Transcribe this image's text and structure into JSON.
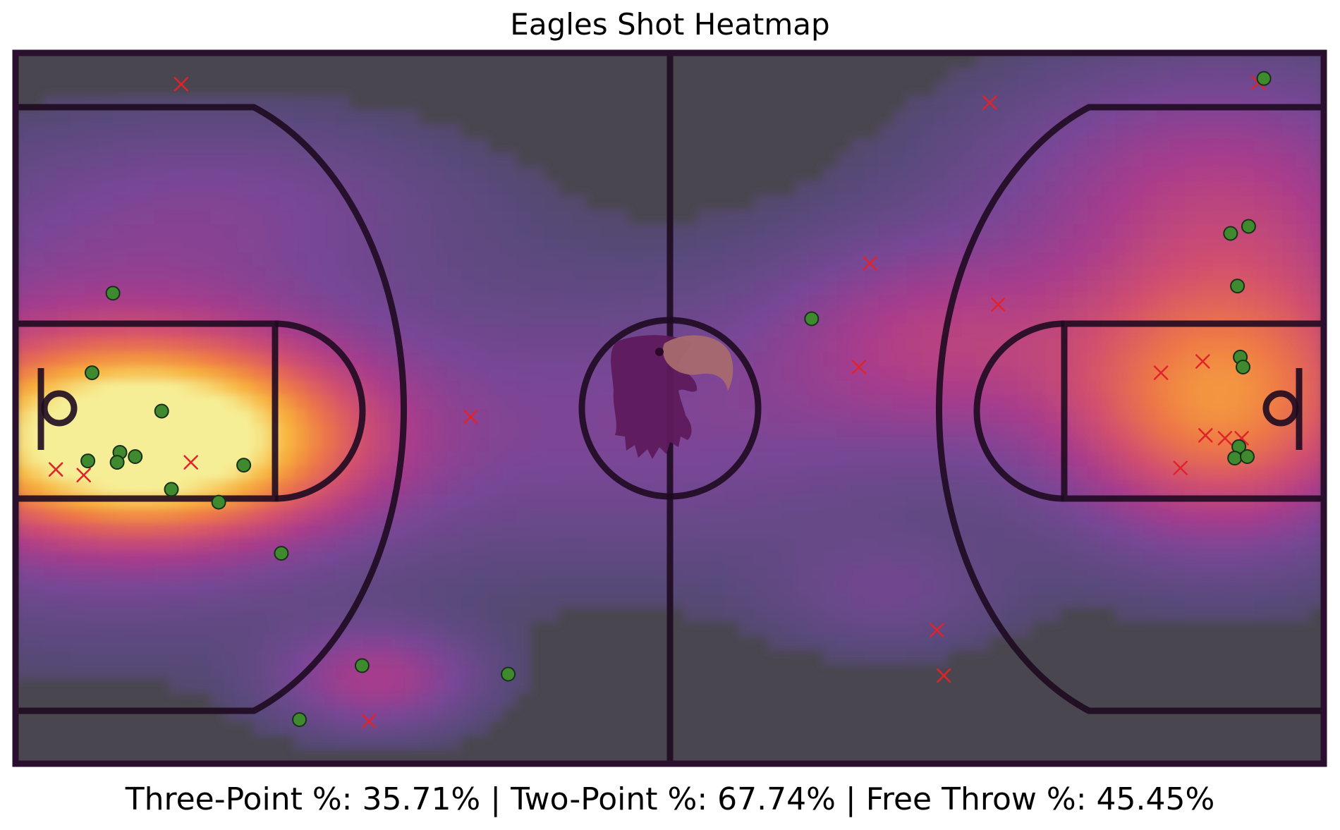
{
  "title": "Eagles Shot Heatmap",
  "stats": {
    "three_point_label": "Three-Point %:",
    "three_point_value": "35.71%",
    "two_point_label": "Two-Point %:",
    "two_point_value": "67.74%",
    "free_throw_label": "Free Throw %:",
    "free_throw_value": "45.45%",
    "separator": "|"
  },
  "colors": {
    "court_background": "#4a4650",
    "court_lines": "#1e0a20",
    "made_marker": "#3f8a2e",
    "missed_marker": "#e0232b",
    "heat_low": "#5a4a80",
    "heat_mid": "#a83c8c",
    "heat_high": "#f6e38a"
  },
  "chart_data": {
    "type": "scatter",
    "title": "Eagles Shot Heatmap",
    "overlay": "shot density heatmap",
    "xlim": [
      0,
      94
    ],
    "ylim": [
      0,
      50
    ],
    "made_shots": [
      [
        7.0,
        33.1
      ],
      [
        5.5,
        27.5
      ],
      [
        10.5,
        24.8
      ],
      [
        5.2,
        21.3
      ],
      [
        7.5,
        21.9
      ],
      [
        8.6,
        21.6
      ],
      [
        7.3,
        21.2
      ],
      [
        11.2,
        19.3
      ],
      [
        16.4,
        21.0
      ],
      [
        14.6,
        18.4
      ],
      [
        19.1,
        14.8
      ],
      [
        24.9,
        6.9
      ],
      [
        20.4,
        3.1
      ],
      [
        35.4,
        6.3
      ],
      [
        57.2,
        31.3
      ],
      [
        89.7,
        48.2
      ],
      [
        87.3,
        37.3
      ],
      [
        88.6,
        37.8
      ],
      [
        87.8,
        33.6
      ],
      [
        88.0,
        28.6
      ],
      [
        88.2,
        27.9
      ],
      [
        87.9,
        22.3
      ],
      [
        87.6,
        21.5
      ],
      [
        88.5,
        21.6
      ]
    ],
    "missed_shots": [
      [
        11.9,
        47.8
      ],
      [
        2.9,
        20.7
      ],
      [
        4.9,
        20.3
      ],
      [
        12.6,
        21.2
      ],
      [
        32.7,
        24.4
      ],
      [
        25.4,
        3.0
      ],
      [
        61.4,
        35.2
      ],
      [
        60.6,
        27.9
      ],
      [
        70.6,
        32.3
      ],
      [
        70.0,
        46.5
      ],
      [
        89.3,
        47.9
      ],
      [
        82.3,
        27.5
      ],
      [
        85.3,
        28.3
      ],
      [
        85.5,
        23.1
      ],
      [
        83.7,
        20.8
      ],
      [
        86.9,
        22.9
      ],
      [
        88.1,
        22.9
      ],
      [
        66.2,
        9.4
      ],
      [
        66.7,
        6.2
      ]
    ],
    "heat_centers": [
      {
        "x": 9.5,
        "y": 22.8,
        "sx": 9.5,
        "sy": 4.2,
        "w": 1.0
      },
      {
        "x": 6.0,
        "y": 25.0,
        "sx": 15.0,
        "sy": 9.0,
        "w": 0.35
      },
      {
        "x": 26.0,
        "y": 6.0,
        "sx": 5.0,
        "sy": 2.5,
        "w": 0.3
      },
      {
        "x": 86.5,
        "y": 24.5,
        "sx": 8.0,
        "sy": 6.0,
        "w": 0.52
      },
      {
        "x": 88.0,
        "y": 34.0,
        "sx": 10.0,
        "sy": 9.0,
        "w": 0.32
      },
      {
        "x": 66.0,
        "y": 30.0,
        "sx": 8.0,
        "sy": 5.0,
        "w": 0.28
      },
      {
        "x": 47.0,
        "y": 24.0,
        "sx": 14.0,
        "sy": 7.0,
        "w": 0.18
      },
      {
        "x": 82.0,
        "y": 42.0,
        "sx": 12.0,
        "sy": 5.0,
        "w": 0.12
      },
      {
        "x": 63.0,
        "y": 12.0,
        "sx": 6.0,
        "sy": 3.0,
        "w": 0.12
      },
      {
        "x": 16.0,
        "y": 40.0,
        "sx": 12.0,
        "sy": 4.0,
        "w": 0.12
      }
    ]
  }
}
